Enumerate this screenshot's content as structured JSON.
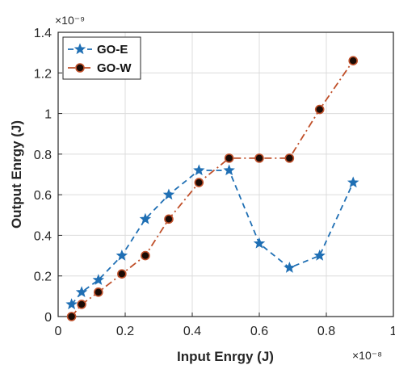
{
  "chart_data": {
    "type": "line",
    "xlabel": "Input Enrgy (J)",
    "ylabel": "Output Enrgy (J)",
    "x_exponent": "×10⁻⁸",
    "y_exponent": "×10⁻⁹",
    "xlim": [
      0,
      1
    ],
    "ylim": [
      0,
      1.4
    ],
    "xticks": [
      0,
      0.2,
      0.4,
      0.6,
      0.8,
      1
    ],
    "yticks": [
      0,
      0.2,
      0.4,
      0.6,
      0.8,
      1,
      1.2,
      1.4
    ],
    "xtick_labels": [
      "0",
      "0.2",
      "0.4",
      "0.6",
      "0.8",
      "1"
    ],
    "ytick_labels": [
      "0",
      "0.2",
      "0.4",
      "0.6",
      "0.8",
      "1",
      "1.2",
      "1.4"
    ],
    "grid": true,
    "legend_position": "top-left",
    "series": [
      {
        "name": "GO-E",
        "color": "#1f6fb4",
        "marker": "star",
        "line_style": "dashed",
        "x": [
          0.04,
          0.07,
          0.12,
          0.19,
          0.26,
          0.33,
          0.42,
          0.51,
          0.6,
          0.69,
          0.78,
          0.88
        ],
        "y": [
          0.06,
          0.12,
          0.18,
          0.3,
          0.48,
          0.6,
          0.72,
          0.72,
          0.36,
          0.24,
          0.3,
          0.66
        ]
      },
      {
        "name": "GO-W",
        "color": "#c0502a",
        "marker": "circle",
        "line_style": "dash-dot",
        "x": [
          0.04,
          0.07,
          0.12,
          0.19,
          0.26,
          0.33,
          0.42,
          0.51,
          0.6,
          0.69,
          0.78,
          0.88
        ],
        "y": [
          0.0,
          0.06,
          0.12,
          0.21,
          0.3,
          0.48,
          0.66,
          0.78,
          0.78,
          0.78,
          1.02,
          1.26
        ]
      }
    ]
  }
}
